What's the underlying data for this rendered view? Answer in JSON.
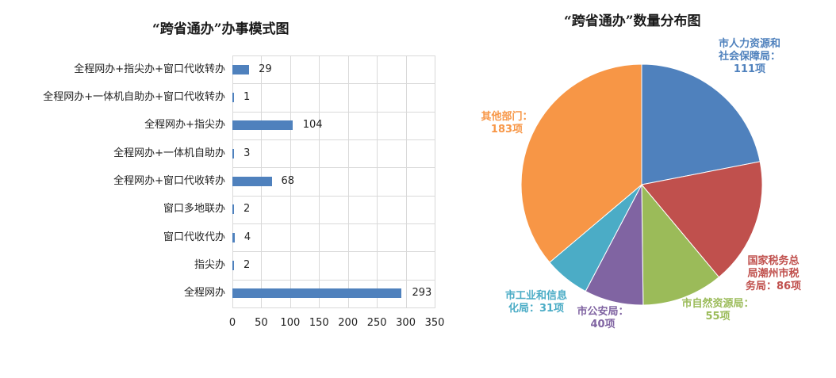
{
  "chart_data": [
    {
      "type": "bar",
      "orientation": "horizontal",
      "title": "“跨省通办”办事模式图",
      "categories": [
        "全程网办+指尖办+窗口代收转办",
        "全程网办+一体机自助办+窗口代收转办",
        "全程网办+指尖办",
        "全程网办+一体机自助办",
        "全程网办+窗口代收转办",
        "窗口多地联办",
        "窗口代收代办",
        "指尖办",
        "全程网办"
      ],
      "values": [
        29,
        1,
        104,
        3,
        68,
        2,
        4,
        2,
        293
      ],
      "xlabel": "",
      "ylabel": "",
      "xlim": [
        0,
        350
      ],
      "xticks": [
        "0",
        "50",
        "100",
        "150",
        "200",
        "250",
        "300",
        "350"
      ],
      "grid": true,
      "bar_color": "#4f81bd"
    },
    {
      "type": "pie",
      "title": "“跨省通办”数量分布图",
      "slices": [
        {
          "name": "市人力资源和社会保障局",
          "value": 111,
          "color": "#4f81bd",
          "label_lines": [
            "市人力资源和",
            "社会保障局：",
            "111项"
          ]
        },
        {
          "name": "国家税务总局潮州市税务局",
          "value": 86,
          "color": "#c0504d",
          "label_lines": [
            "国家税务总",
            "局潮州市税",
            "务局：86项"
          ]
        },
        {
          "name": "市自然资源局",
          "value": 55,
          "color": "#9bbb59",
          "label_lines": [
            "市自然资源局：",
            "55项"
          ]
        },
        {
          "name": "市公安局",
          "value": 40,
          "color": "#8064a2",
          "label_lines": [
            "市公安局：",
            "40项"
          ]
        },
        {
          "name": "市工业和信息化局",
          "value": 31,
          "color": "#4bacc6",
          "label_lines": [
            "市工业和信息",
            "化局：31项"
          ]
        },
        {
          "name": "其他部门",
          "value": 183,
          "color": "#f79646",
          "label_lines": [
            "其他部门：",
            "183项"
          ]
        }
      ]
    }
  ]
}
